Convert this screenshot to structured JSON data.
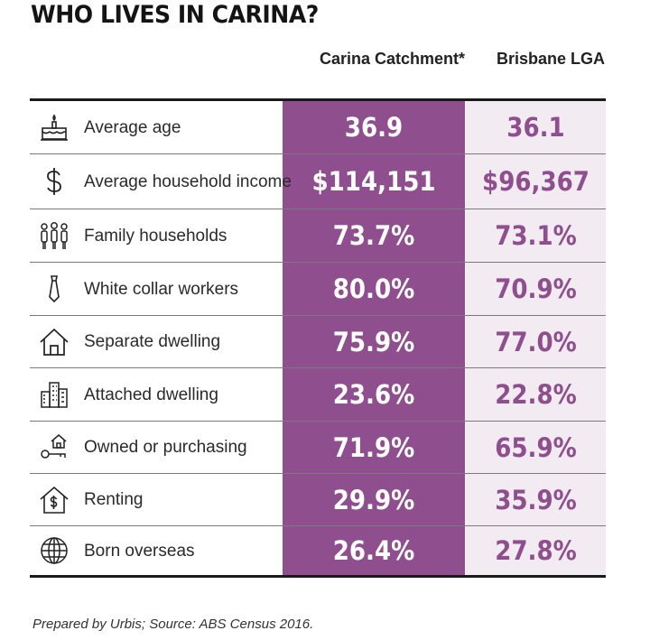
{
  "title": "WHO LIVES IN CARINA?",
  "columns": {
    "carina": "Carina Catchment*",
    "brisbane": "Brisbane LGA"
  },
  "footer": "Prepared by Urbis; Source: ABS Census 2016.",
  "colors": {
    "carina_column": "#8f4e8e",
    "brisbane_column": "#f2ebf2",
    "brisbane_text": "#8f4e8e"
  },
  "chart_data": {
    "type": "table",
    "title": "WHO LIVES IN CARINA?",
    "columns": [
      "Carina Catchment*",
      "Brisbane LGA"
    ],
    "rows": [
      {
        "icon": "cake-icon",
        "label": "Average age",
        "carina": "36.9",
        "brisbane": "36.1"
      },
      {
        "icon": "dollar-icon",
        "label": "Average household income",
        "carina": "$114,151",
        "brisbane": "$96,367"
      },
      {
        "icon": "family-icon",
        "label": "Family households",
        "carina": "73.7%",
        "brisbane": "73.1%"
      },
      {
        "icon": "tie-icon",
        "label": "White collar workers",
        "carina": "80.0%",
        "brisbane": "70.9%"
      },
      {
        "icon": "house-icon",
        "label": "Separate dwelling",
        "carina": "75.9%",
        "brisbane": "77.0%"
      },
      {
        "icon": "buildings-icon",
        "label": "Attached dwelling",
        "carina": "23.6%",
        "brisbane": "22.8%"
      },
      {
        "icon": "house-key-icon",
        "label": "Owned or purchasing",
        "carina": "71.9%",
        "brisbane": "65.9%"
      },
      {
        "icon": "rent-house-icon",
        "label": "Renting",
        "carina": "29.9%",
        "brisbane": "35.9%"
      },
      {
        "icon": "globe-icon",
        "label": "Born overseas",
        "carina": "26.4%",
        "brisbane": "27.8%"
      }
    ]
  }
}
